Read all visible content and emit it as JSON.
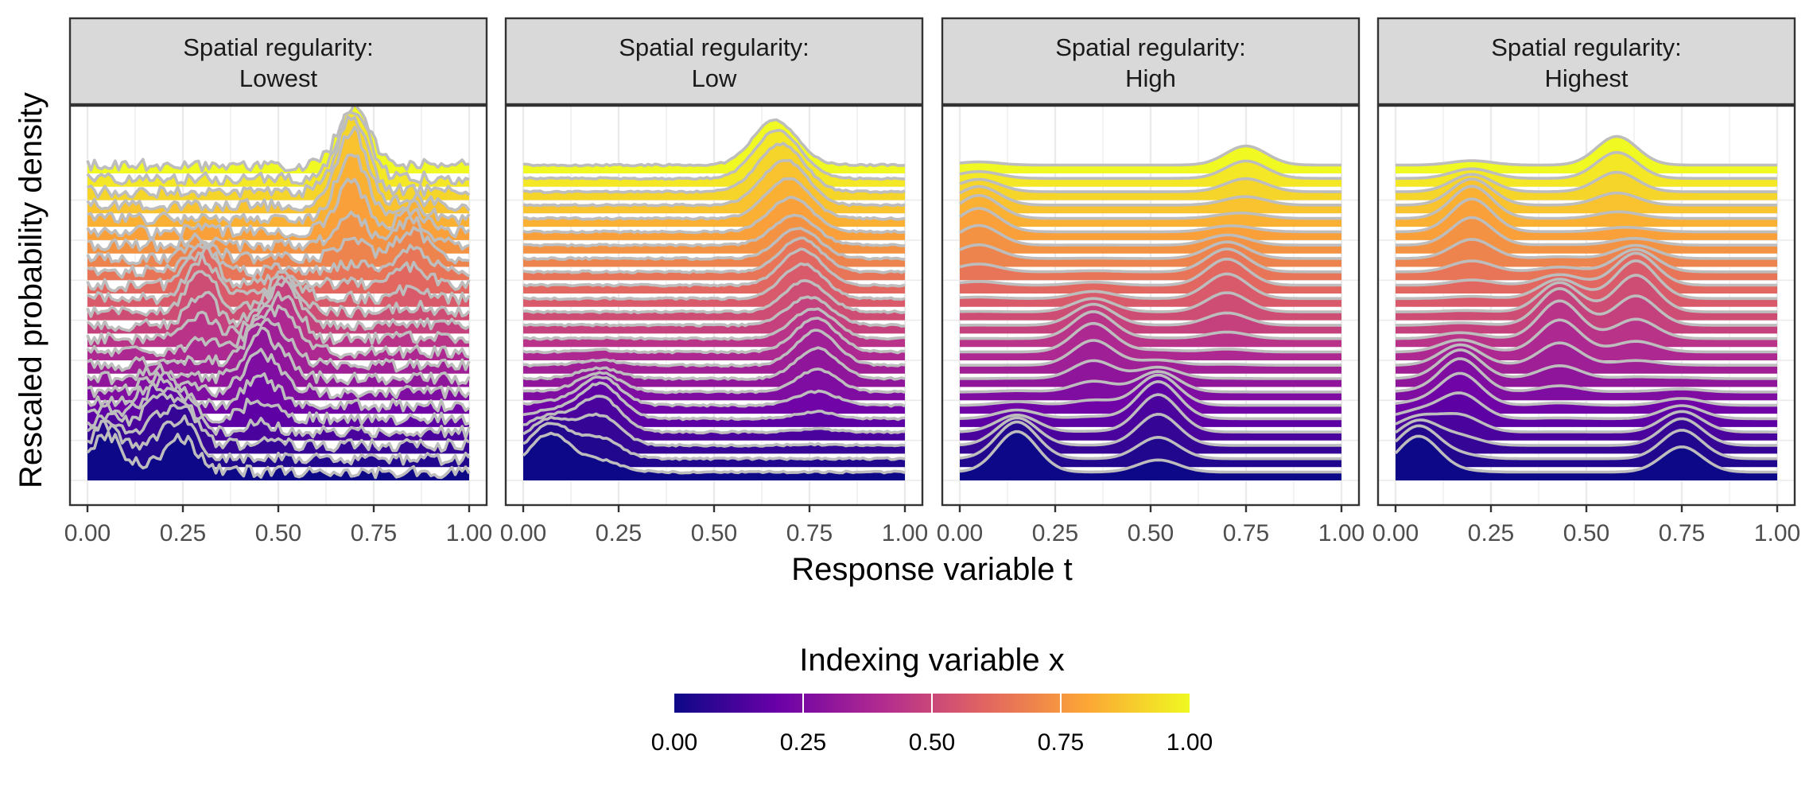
{
  "chart_data": {
    "type": "ridgeline",
    "y_axis_label": "Rescaled probability density",
    "x_axis_label": "Response variable t",
    "xlim": [
      0,
      1
    ],
    "x_ticks": [
      "0.00",
      "0.25",
      "0.50",
      "0.75",
      "1.00"
    ],
    "grid": true,
    "legend": {
      "title": "Indexing variable x",
      "position": "bottom",
      "ticks": [
        "0.00",
        "0.25",
        "0.50",
        "0.75",
        "1.00"
      ],
      "range": [
        0,
        1
      ],
      "palette": "plasma",
      "colors": [
        "#0d0887",
        "#6a00a8",
        "#b12a90",
        "#e16462",
        "#fca636",
        "#f0f921"
      ]
    },
    "ridge_count": 24,
    "line_color": "#bdbdbd",
    "panels": [
      {
        "strip_line1": "Spatial regularity:",
        "strip_line2": "Lowest",
        "peaks": [
          {
            "x_index": 0.0,
            "t": 0.05,
            "height": 1.6
          },
          {
            "x_index": 0.05,
            "t": 0.25,
            "height": 1.5
          },
          {
            "x_index": 0.15,
            "t": 0.18,
            "height": 1.2
          },
          {
            "x_index": 0.3,
            "t": 0.45,
            "height": 1.8
          },
          {
            "x_index": 0.45,
            "t": 0.52,
            "height": 1.7
          },
          {
            "x_index": 0.55,
            "t": 0.3,
            "height": 1.7
          },
          {
            "x_index": 0.7,
            "t": 0.85,
            "height": 1.2
          },
          {
            "x_index": 0.85,
            "t": 0.69,
            "height": 2.4
          },
          {
            "x_index": 1.0,
            "t": 0.7,
            "height": 1.8
          }
        ]
      },
      {
        "strip_line1": "Spatial regularity:",
        "strip_line2": "Low",
        "peaks": [
          {
            "x_index": 0.0,
            "t": 0.07,
            "height": 1.6
          },
          {
            "x_index": 0.15,
            "t": 0.2,
            "height": 1.5
          },
          {
            "x_index": 0.35,
            "t": 0.77,
            "height": 1.4
          },
          {
            "x_index": 0.6,
            "t": 0.73,
            "height": 1.4
          },
          {
            "x_index": 0.85,
            "t": 0.7,
            "height": 1.4
          },
          {
            "x_index": 1.0,
            "t": 0.65,
            "height": 1.6
          }
        ]
      },
      {
        "strip_line1": "Spatial regularity:",
        "strip_line2": "High",
        "peaks": [
          {
            "x_index": 0.0,
            "t": 0.15,
            "height": 1.7
          },
          {
            "x_index": 0.15,
            "t": 0.52,
            "height": 1.6
          },
          {
            "x_index": 0.4,
            "t": 0.35,
            "height": 1.2
          },
          {
            "x_index": 0.6,
            "t": 0.7,
            "height": 1.1
          },
          {
            "x_index": 0.8,
            "t": 0.05,
            "height": 1.0
          },
          {
            "x_index": 1.0,
            "t": 0.75,
            "height": 0.8
          }
        ]
      },
      {
        "strip_line1": "Spatial regularity:",
        "strip_line2": "Highest",
        "peaks": [
          {
            "x_index": 0.0,
            "t": 0.06,
            "height": 1.5
          },
          {
            "x_index": 0.05,
            "t": 0.75,
            "height": 1.2
          },
          {
            "x_index": 0.25,
            "t": 0.17,
            "height": 1.4
          },
          {
            "x_index": 0.45,
            "t": 0.43,
            "height": 1.6
          },
          {
            "x_index": 0.55,
            "t": 0.63,
            "height": 1.6
          },
          {
            "x_index": 0.8,
            "t": 0.2,
            "height": 1.4
          },
          {
            "x_index": 1.0,
            "t": 0.58,
            "height": 1.2
          }
        ]
      }
    ]
  }
}
